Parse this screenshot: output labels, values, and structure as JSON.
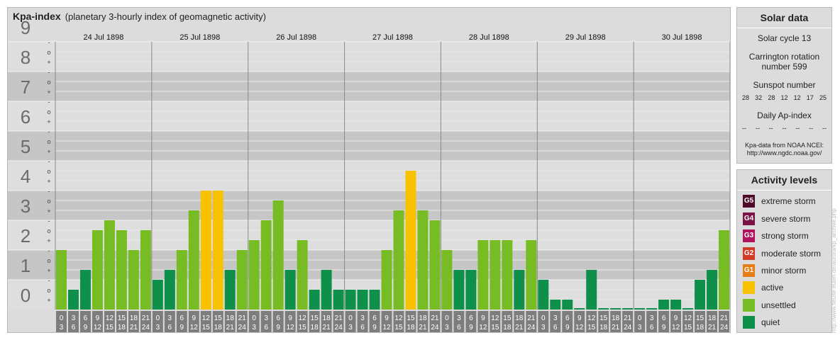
{
  "header": {
    "title": "Kpa-index",
    "subtitle": "(planetary 3-hourly index of geomagnetic activity)"
  },
  "chart_data": {
    "type": "bar",
    "title": "Kpa-index",
    "subtitle": "(planetary 3-hourly index of geomagnetic activity)",
    "ylim": [
      0,
      9
    ],
    "y_major_ticks": [
      "0",
      "1",
      "2",
      "3",
      "4",
      "5",
      "6",
      "7",
      "8",
      "9"
    ],
    "y_minor_labels": [
      "+",
      "o",
      "-"
    ],
    "days": [
      "24 Jul 1898",
      "25 Jul 1898",
      "26 Jul 1898",
      "27 Jul 1898",
      "28 Jul 1898",
      "29 Jul 1898",
      "30 Jul 1898"
    ],
    "interval_labels": [
      [
        "0",
        "3"
      ],
      [
        "3",
        "6"
      ],
      [
        "6",
        "9"
      ],
      [
        "9",
        "12"
      ],
      [
        "12",
        "15"
      ],
      [
        "15",
        "18"
      ],
      [
        "18",
        "21"
      ],
      [
        "21",
        "24"
      ]
    ],
    "values": [
      [
        2.0,
        0.667,
        1.333,
        2.667,
        3.0,
        2.667,
        2.0,
        2.667
      ],
      [
        1.0,
        1.333,
        2.0,
        3.333,
        4.0,
        4.0,
        1.333,
        2.0
      ],
      [
        2.333,
        3.0,
        3.667,
        1.333,
        2.333,
        0.667,
        1.333,
        0.667
      ],
      [
        0.667,
        0.667,
        0.667,
        2.0,
        3.333,
        4.667,
        3.333,
        3.0
      ],
      [
        2.0,
        1.333,
        1.333,
        2.333,
        2.333,
        2.333,
        1.333,
        2.333
      ],
      [
        1.0,
        0.333,
        0.333,
        0.0,
        1.333,
        0.0,
        0.0,
        0.0
      ],
      [
        0.0,
        0.0,
        0.333,
        0.333,
        0.0,
        1.0,
        1.333,
        2.667
      ]
    ],
    "level_colors": {
      "quiet": "#0e8f4a",
      "unsettled": "#78bc24",
      "active": "#f9c200",
      "minor_storm": "#e67e15",
      "moderate_storm": "#d03a27",
      "strong_storm": "#b0125e",
      "severe_storm": "#7a1446",
      "extreme_storm": "#4e0a28"
    },
    "grid": true
  },
  "solar": {
    "title": "Solar data",
    "cycle": "Solar cycle 13",
    "carrington_line1": "Carrington rotation",
    "carrington_line2": "number 599",
    "sunspot_title": "Sunspot number",
    "sunspot_values": [
      "28",
      "32",
      "28",
      "12",
      "12",
      "17",
      "25"
    ],
    "ap_title": "Daily Ap-index",
    "ap_values": [
      "--",
      "--",
      "--",
      "--",
      "--",
      "--",
      "--"
    ],
    "source_line1": "Kpa-data from NOAA NCEI:",
    "source_line2": "http://www.ngdc.noaa.gov/"
  },
  "activity": {
    "title": "Activity levels",
    "items": [
      {
        "badge": "G5",
        "label": "extreme storm",
        "color": "#4e0a28"
      },
      {
        "badge": "G4",
        "label": "severe storm",
        "color": "#7a1446"
      },
      {
        "badge": "G3",
        "label": "strong storm",
        "color": "#b0125e"
      },
      {
        "badge": "G2",
        "label": "moderate storm",
        "color": "#d03a27"
      },
      {
        "badge": "G1",
        "label": "minor storm",
        "color": "#e67e15"
      },
      {
        "badge": "",
        "label": "active",
        "color": "#f9c200"
      },
      {
        "badge": "",
        "label": "unsettled",
        "color": "#78bc24"
      },
      {
        "badge": "",
        "label": "quiet",
        "color": "#0e8f4a"
      }
    ]
  },
  "watermark": "http://www.fleuse-eulen.de/aurora/kp_archive.php"
}
